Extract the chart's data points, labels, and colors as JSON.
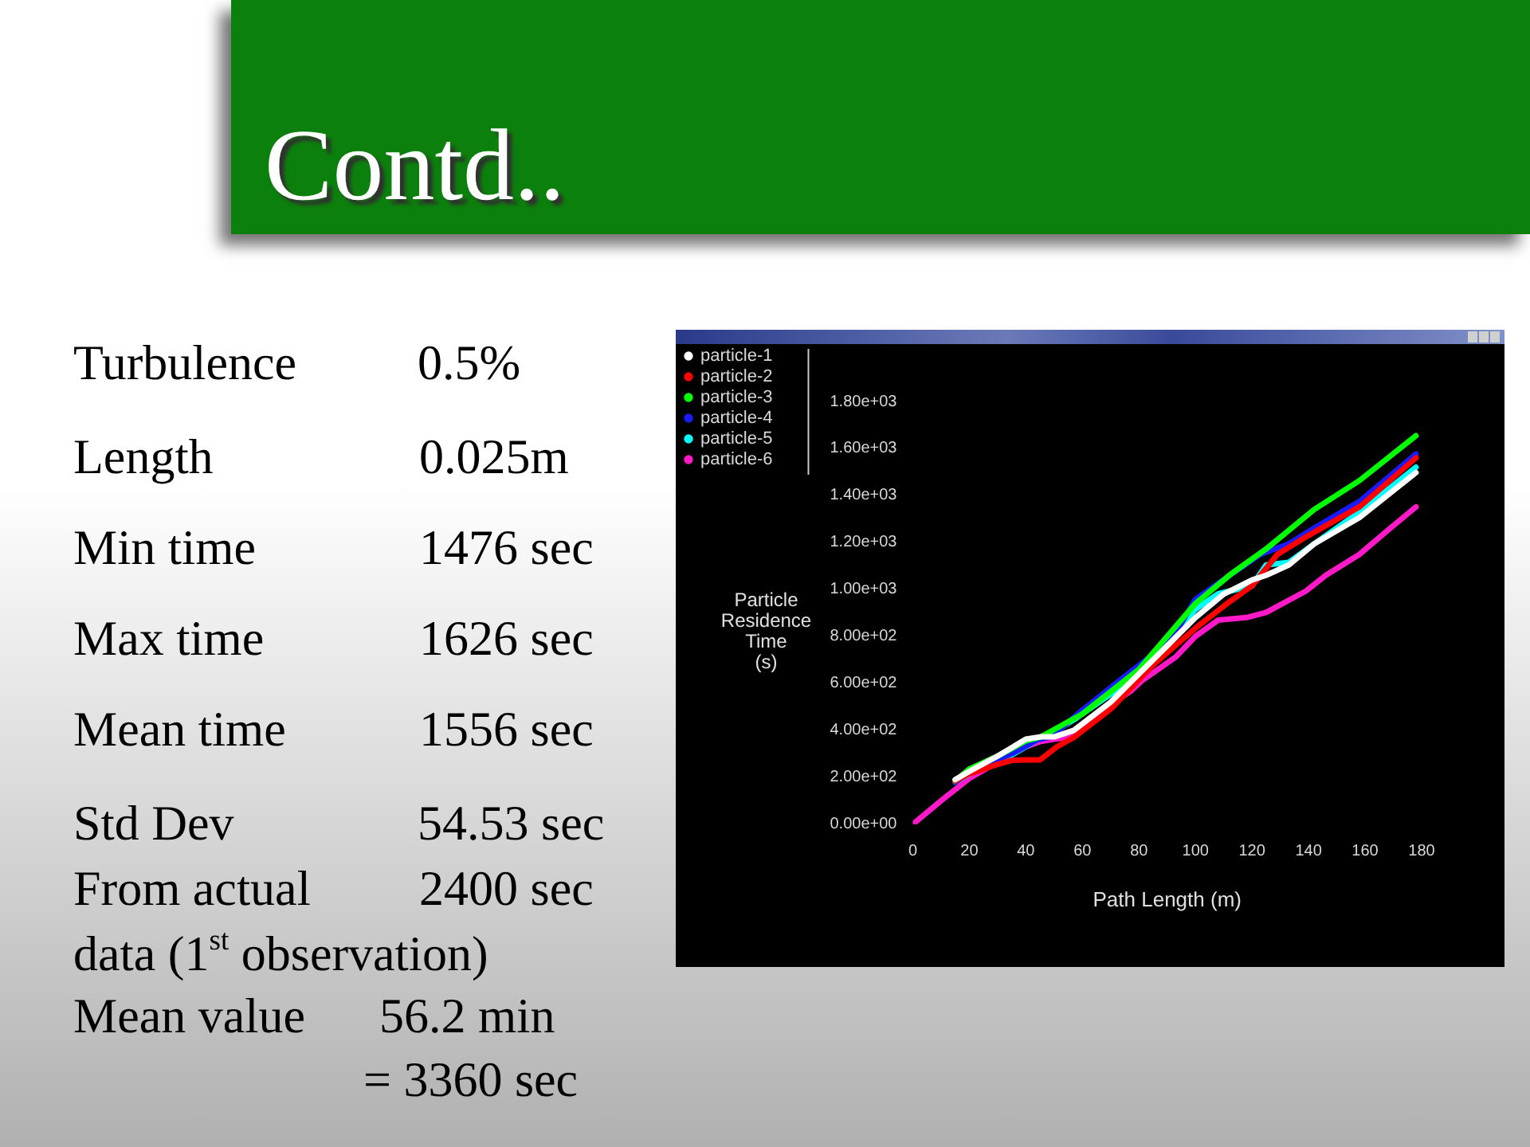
{
  "chart_data": {
    "type": "line",
    "title": "Contd..",
    "xlabel": "Path Length (m)",
    "ylabel": "Particle\nResidence\nTime\n(s)",
    "annotations": [
      "Turbulence\t0.5%",
      "Length\t0.025m",
      "Min time\t1476 sec",
      "Max time\t1626 sec",
      "Mean time\t1556 sec",
      "Std Dev\t54.53 sec",
      "From actual\t2400 sec",
      "data (1$^{st}$ observation)",
      "Mean value\t56.2 min",
      "\t= 3360 sec"
    ],
    "xlim": [
      0,
      180
    ],
    "xticks": [
      0,
      20,
      40,
      60,
      80,
      100,
      120,
      140,
      160,
      180
    ],
    "ylim": [
      0,
      1800
    ],
    "yticks": [
      {
        "value": 0,
        "label": "0.00e+00"
      },
      {
        "value": 200,
        "label": "2.00e+02"
      },
      {
        "value": 400,
        "label": "4.00e+02"
      },
      {
        "value": 600,
        "label": "6.00e+02"
      },
      {
        "value": 800,
        "label": "8.00e+02"
      },
      {
        "value": 1000,
        "label": "1.00e+03"
      },
      {
        "value": 1200,
        "label": "1.20e+03"
      },
      {
        "value": 1400,
        "label": "1.40e+03"
      },
      {
        "value": 1600,
        "label": "1.60e+03"
      },
      {
        "value": 1800,
        "label": "1.80e+03"
      }
    ],
    "legend": "top left",
    "series": [
      {
        "name": "particle-1",
        "color": "#ffffff",
        "x": [
          15,
          20,
          30,
          40,
          45,
          50,
          57,
          70,
          80,
          90,
          100,
          110,
          120,
          125,
          133,
          142,
          158,
          178
        ],
        "values": [
          190,
          225,
          290,
          362,
          372,
          372,
          400,
          520,
          640,
          760,
          880,
          980,
          1040,
          1060,
          1104,
          1194,
          1306,
          1497
        ]
      },
      {
        "name": "particle-2",
        "color": "#ff0000",
        "x": [
          15,
          20,
          30,
          35,
          40,
          45,
          51,
          57,
          70,
          85,
          100,
          112,
          120,
          129,
          140,
          158,
          178
        ],
        "values": [
          185,
          215,
          255,
          272,
          274,
          274,
          330,
          370,
          490,
          678,
          835,
          947,
          1015,
          1149,
          1230,
          1351,
          1560
        ]
      },
      {
        "name": "particle-3",
        "color": "#00ff00",
        "x": [
          15,
          20,
          30,
          40,
          45,
          60,
          80,
          100,
          112,
          125,
          142,
          158,
          178
        ],
        "values": [
          184,
          235,
          290,
          355,
          370,
          470,
          660,
          940,
          1060,
          1172,
          1340,
          1463,
          1654
        ]
      },
      {
        "name": "particle-4",
        "color": "#1a1aff",
        "x": [
          15,
          24,
          35,
          44,
          49,
          59,
          73,
          85,
          94,
          100,
          112,
          123,
          133,
          142,
          158,
          178
        ],
        "values": [
          180,
          247,
          300,
          359,
          373,
          476,
          611,
          723,
          835,
          958,
          1059,
          1149,
          1194,
          1261,
          1374,
          1576
        ]
      },
      {
        "name": "particle-5",
        "color": "#00ffff",
        "x": [
          15,
          24,
          35,
          44,
          52,
          58,
          70,
          81,
          95,
          100,
          108,
          120,
          125,
          133,
          142,
          158,
          178
        ],
        "values": [
          180,
          240,
          295,
          359,
          409,
          453,
          554,
          655,
          850,
          915,
          981,
          1015,
          1104,
          1115,
          1194,
          1329,
          1520
        ]
      },
      {
        "name": "particle-6",
        "color": "#ff19c8",
        "x": [
          0,
          10,
          20,
          30,
          40,
          45,
          50,
          55,
          60,
          66,
          77,
          81,
          93,
          100,
          108,
          118,
          125,
          139,
          146,
          158,
          169,
          178
        ],
        "values": [
          0,
          100,
          195,
          265,
          330,
          352,
          362,
          370,
          400,
          476,
          566,
          611,
          712,
          800,
          869,
          880,
          902,
          992,
          1059,
          1149,
          1261,
          1351
        ]
      }
    ]
  }
}
